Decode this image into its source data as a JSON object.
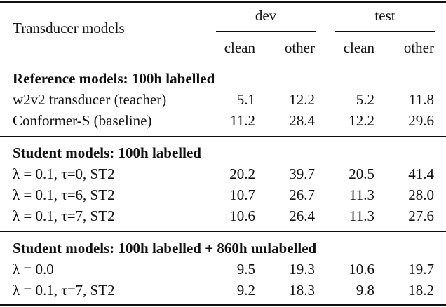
{
  "header": {
    "row_label": "Transducer models",
    "groups": [
      {
        "label": "dev",
        "columns": [
          "clean",
          "other"
        ]
      },
      {
        "label": "test",
        "columns": [
          "clean",
          "other"
        ]
      }
    ]
  },
  "sections": [
    {
      "title": "Reference models: 100h labelled",
      "rows": [
        [
          "w2v2 transducer (teacher)",
          "5.1",
          "12.2",
          "5.2",
          "11.8"
        ],
        [
          "Conformer-S (baseline)",
          "11.2",
          "28.4",
          "12.2",
          "29.6"
        ]
      ]
    },
    {
      "title": "Student models: 100h labelled",
      "rows": [
        [
          "λ = 0.1, τ=0, ST2",
          "20.2",
          "39.7",
          "20.5",
          "41.4"
        ],
        [
          "λ = 0.1, τ=6, ST2",
          "10.7",
          "26.7",
          "11.3",
          "28.0"
        ],
        [
          "λ = 0.1, τ=7, ST2",
          "10.6",
          "26.4",
          "11.3",
          "27.6"
        ]
      ]
    },
    {
      "title": "Student models: 100h labelled + 860h unlabelled",
      "rows": [
        [
          "λ = 0.0",
          "9.5",
          "19.3",
          "10.6",
          "19.7"
        ],
        [
          "λ = 0.1, τ=7, ST2",
          "9.2",
          "18.3",
          "9.8",
          "18.2"
        ]
      ]
    }
  ]
}
